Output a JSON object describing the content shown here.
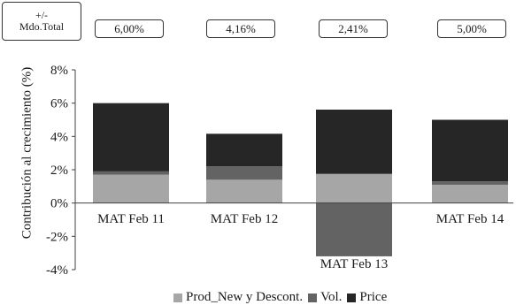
{
  "header": {
    "total_label_line1": "+/-",
    "total_label_line2": "Mdo.Total",
    "growth_values": [
      "6,00%",
      "4,16%",
      "2,41%",
      "5,00%"
    ]
  },
  "colors": {
    "prod_new": "#a6a6a6",
    "vol": "#636363",
    "price": "#262626",
    "axis": "#404040"
  },
  "chart_data": {
    "type": "bar",
    "stacked": true,
    "categories": [
      "MAT Feb 11",
      "MAT Feb 12",
      "MAT Feb 13",
      "MAT Feb 14"
    ],
    "series": [
      {
        "name": "Prod_New y Descont.",
        "values": [
          1.7,
          1.4,
          1.75,
          1.1
        ]
      },
      {
        "name": "Vol.",
        "values": [
          0.2,
          0.8,
          -3.2,
          0.2
        ]
      },
      {
        "name": "Price",
        "values": [
          4.1,
          1.96,
          3.86,
          3.7
        ]
      }
    ],
    "title": "",
    "xlabel": "",
    "ylabel": "Contribución al crecimiento (%)",
    "ylim": [
      -4,
      8
    ],
    "yticks": [
      "8%",
      "6%",
      "4%",
      "2%",
      "0%",
      "-2%",
      "-4%"
    ],
    "grid": false,
    "legend_position": "bottom"
  }
}
